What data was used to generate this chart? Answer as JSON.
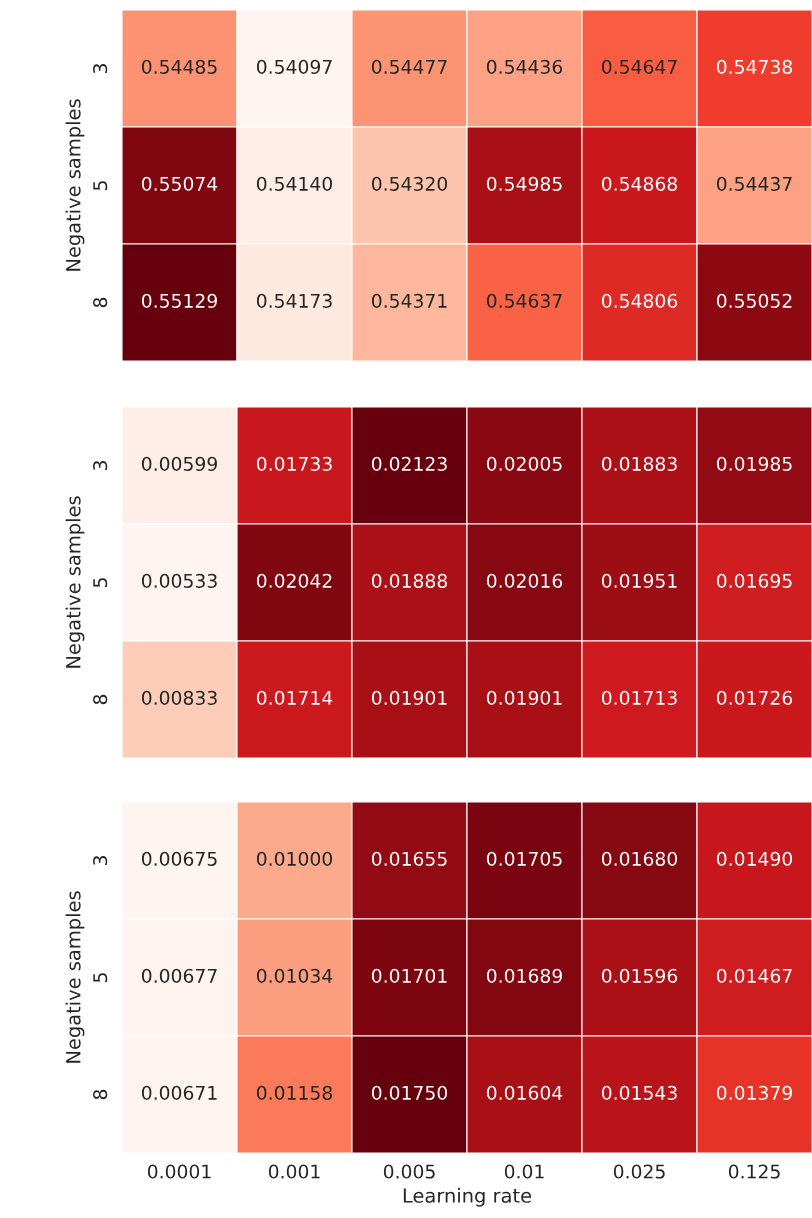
{
  "chart_data": [
    {
      "type": "heatmap",
      "data_labels": true,
      "ylabel": "Negative samples",
      "tick_labels": "y",
      "categories": [
        "0.0001",
        "0.001",
        "0.005",
        "0.01",
        "0.025",
        "0.125"
      ],
      "y_categories": [
        "3",
        "5",
        "8"
      ],
      "cells": [
        [
          0.54485,
          0.54097,
          0.54477,
          0.54436,
          0.54647,
          0.54738
        ],
        [
          0.55074,
          0.5414,
          0.5432,
          0.54985,
          0.54868,
          0.54437
        ],
        [
          0.55129,
          0.54173,
          0.54371,
          0.54637,
          0.54806,
          0.55052
        ]
      ],
      "cell_labels": [
        [
          "0.54485",
          "0.54097",
          "0.54477",
          "0.54436",
          "0.54647",
          "0.54738"
        ],
        [
          "0.55074",
          "0.54140",
          "0.54320",
          "0.54985",
          "0.54868",
          "0.54437"
        ],
        [
          "0.55129",
          "0.54173",
          "0.54371",
          "0.54637",
          "0.54806",
          "0.55052"
        ]
      ]
    },
    {
      "type": "heatmap",
      "data_labels": true,
      "ylabel": "Negative samples",
      "tick_labels": "y",
      "categories": [
        "0.0001",
        "0.001",
        "0.005",
        "0.01",
        "0.025",
        "0.125"
      ],
      "y_categories": [
        "3",
        "5",
        "8"
      ],
      "cells": [
        [
          0.00599,
          0.01733,
          0.02123,
          0.02005,
          0.01883,
          0.01985
        ],
        [
          0.00533,
          0.02042,
          0.01888,
          0.02016,
          0.01951,
          0.01695
        ],
        [
          0.00833,
          0.01714,
          0.01901,
          0.01901,
          0.01713,
          0.01726
        ]
      ]
    },
    {
      "type": "heatmap",
      "data_labels": true,
      "ylabel": "Negative samples",
      "xlabel": "Learning rate",
      "categories": [
        "0.0001",
        "0.001",
        "0.005",
        "0.01",
        "0.025",
        "0.125"
      ],
      "y_categories": [
        "3",
        "5",
        "8"
      ],
      "cells": [
        [
          0.00675,
          0.01,
          0.01655,
          0.01705,
          0.0168,
          0.0149
        ],
        [
          0.00677,
          0.01034,
          0.01701,
          0.01689,
          0.01596,
          0.01467
        ],
        [
          0.00671,
          0.01158,
          0.0175,
          0.01604,
          0.01543,
          0.01379
        ]
      ],
      "cell_labels": [
        [
          "0.00675",
          "0.01000",
          "0.01655",
          "0.01705",
          "0.01680",
          "0.01490"
        ],
        [
          "0.00677",
          "0.01034",
          "0.01701",
          "0.01689",
          "0.01596",
          "0.01467"
        ],
        [
          "0.00671",
          "0.01158",
          "0.01750",
          "0.01604",
          "0.01543",
          "0.01379"
        ]
      ]
    }
  ]
}
